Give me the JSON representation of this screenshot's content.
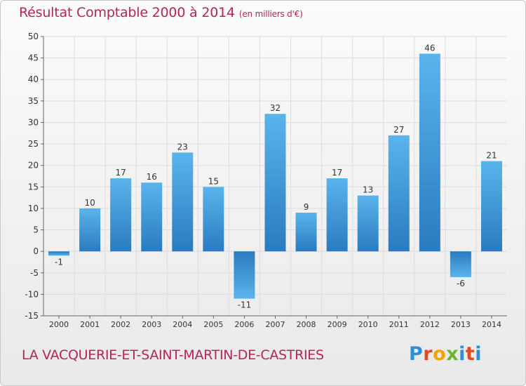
{
  "header": {
    "title": "Résultat Comptable 2000 à 2014",
    "unit": "(en milliers d'€)"
  },
  "footer": {
    "commune": "LA VACQUERIE-ET-SAINT-MARTIN-DE-CASTRIES"
  },
  "logo": {
    "text": "Proxiti",
    "colors": [
      "#2e8fd6",
      "#e24a1f",
      "#f2a400",
      "#6cb52d",
      "#2e8fd6",
      "#e24a1f",
      "#2e8fd6"
    ]
  },
  "colors": {
    "bar_top": "#5ab4ec",
    "bar_bottom": "#2a7bbf",
    "text_accent": "#b2255a",
    "grid": "#dddddd"
  },
  "chart_data": {
    "type": "bar",
    "categories": [
      "2000",
      "2001",
      "2002",
      "2003",
      "2004",
      "2005",
      "2006",
      "2007",
      "2008",
      "2009",
      "2010",
      "2011",
      "2012",
      "2013",
      "2014"
    ],
    "values": [
      -1,
      10,
      17,
      16,
      23,
      15,
      -11,
      32,
      9,
      17,
      13,
      27,
      46,
      -6,
      21
    ],
    "data_labels": [
      "-1",
      "10",
      "17",
      "16",
      "23",
      "15",
      "-11",
      "32",
      "9",
      "17",
      "13",
      "27",
      "46",
      "-6",
      "21"
    ],
    "title": "Résultat Comptable 2000 à 2014",
    "subtitle": "(en milliers d'€)",
    "ylim": [
      -15,
      50
    ],
    "yticks": [
      -15,
      -10,
      -5,
      0,
      5,
      10,
      15,
      20,
      25,
      30,
      35,
      40,
      45,
      50
    ],
    "ytick_labels": [
      "-15",
      "-10",
      "-5",
      "0",
      "5",
      "10",
      "15",
      "20",
      "25",
      "30",
      "35",
      "40",
      "45",
      "50"
    ],
    "grid": true
  }
}
